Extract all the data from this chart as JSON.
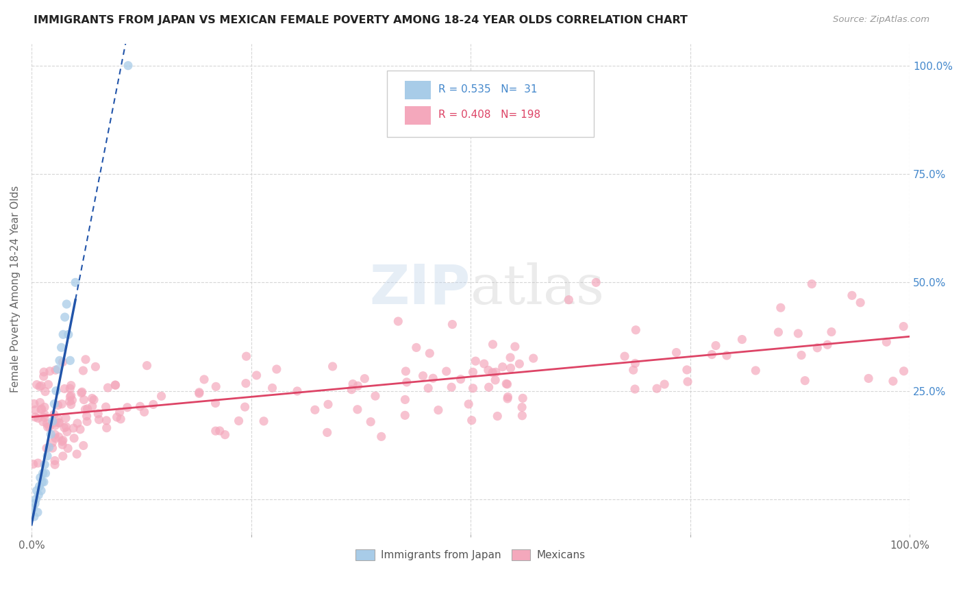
{
  "title": "IMMIGRANTS FROM JAPAN VS MEXICAN FEMALE POVERTY AMONG 18-24 YEAR OLDS CORRELATION CHART",
  "source": "Source: ZipAtlas.com",
  "ylabel": "Female Poverty Among 18-24 Year Olds",
  "xlim": [
    0,
    1.0
  ],
  "ylim": [
    -0.08,
    1.05
  ],
  "legend_blue_r": "0.535",
  "legend_blue_n": "31",
  "legend_pink_r": "0.408",
  "legend_pink_n": "198",
  "blue_color": "#a8cce8",
  "pink_color": "#f4a8bc",
  "blue_line_color": "#2255aa",
  "pink_line_color": "#dd4466",
  "watermark_zip": "ZIP",
  "watermark_atlas": "atlas",
  "background_color": "#ffffff",
  "grid_color": "#cccccc",
  "right_tick_color": "#4488cc",
  "title_color": "#222222",
  "source_color": "#999999",
  "axis_label_color": "#666666",
  "tick_label_color": "#666666"
}
